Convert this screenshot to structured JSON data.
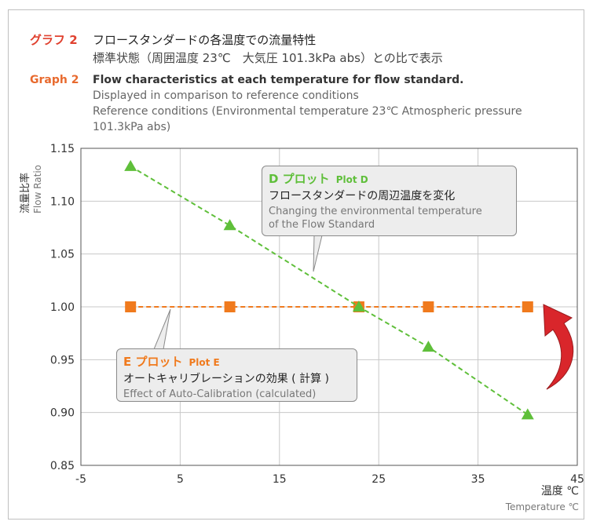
{
  "header": {
    "jp_label": "グラフ 2",
    "jp_title": "フロースタンダードの各温度での流量特性",
    "jp_subtitle": "標準状態（周囲温度 23℃　大気圧 101.3kPa abs）との比で表示",
    "en_label": "Graph 2",
    "en_title": "Flow characteristics at each temperature for flow standard.",
    "en_sub1": "Displayed in comparison to reference conditions",
    "en_sub2": "Reference conditions (Environmental temperature 23℃   Atmospheric pressure",
    "en_sub3": "101.3kPa abs)"
  },
  "callouts": {
    "d": {
      "title": "D プロット",
      "plot": "Plot D",
      "jp": "フロースタンダードの周辺温度を変化",
      "en1": "Changing the environmental temperature",
      "en2": "of the Flow Standard"
    },
    "e": {
      "title": "E プロット",
      "plot": "Plot E",
      "jp": "オートキャリブレーションの効果 ( 計算 )",
      "en1": "Effect of Auto-Calibration (calculated)"
    }
  },
  "colors": {
    "plot_d": "#5fbf3a",
    "plot_e": "#f07a1d",
    "arrow": "#d9262b",
    "grid": "#c8c8c8",
    "axis": "#555555"
  },
  "chart_data": {
    "type": "line",
    "ylabel_jp": "流量比率",
    "ylabel_en": "Flow Ratio",
    "xlabel_jp": "温度 ℃",
    "xlabel_en": "Temperature ℃",
    "xlim": [
      -5,
      45
    ],
    "ylim": [
      0.85,
      1.15
    ],
    "x_ticks": [
      -5,
      5,
      15,
      25,
      35,
      45
    ],
    "x_tick_labels": [
      "-5",
      "5",
      "15",
      "25",
      "35",
      "45"
    ],
    "y_ticks": [
      0.85,
      0.9,
      0.95,
      1.0,
      1.05,
      1.1,
      1.15
    ],
    "y_tick_labels": [
      "0.85",
      "0.90",
      "0.95",
      "1.00",
      "1.05",
      "1.10",
      "1.15"
    ],
    "grid": true,
    "series": [
      {
        "name": "Plot D",
        "marker": "triangle",
        "line": "dashed",
        "x": [
          0,
          10,
          23,
          30,
          40
        ],
        "y": [
          1.133,
          1.077,
          1.0,
          0.962,
          0.898
        ]
      },
      {
        "name": "Plot E",
        "marker": "square",
        "line": "dashed",
        "x": [
          0,
          10,
          23,
          30,
          40
        ],
        "y": [
          1.0,
          1.0,
          1.0,
          1.0,
          1.0
        ]
      }
    ]
  }
}
